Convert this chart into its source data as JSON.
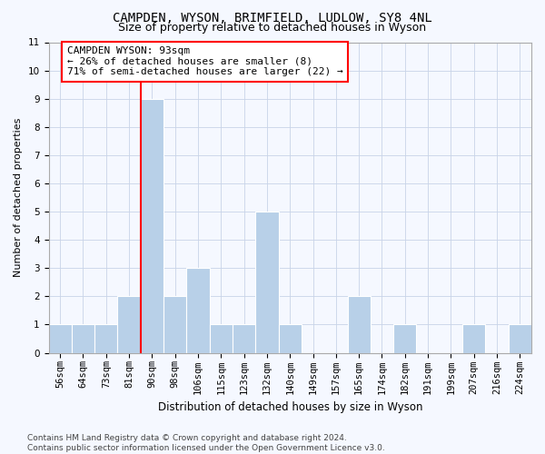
{
  "title1": "CAMPDEN, WYSON, BRIMFIELD, LUDLOW, SY8 4NL",
  "title2": "Size of property relative to detached houses in Wyson",
  "xlabel": "Distribution of detached houses by size in Wyson",
  "ylabel": "Number of detached properties",
  "categories": [
    "56sqm",
    "64sqm",
    "73sqm",
    "81sqm",
    "90sqm",
    "98sqm",
    "106sqm",
    "115sqm",
    "123sqm",
    "132sqm",
    "140sqm",
    "149sqm",
    "157sqm",
    "165sqm",
    "174sqm",
    "182sqm",
    "191sqm",
    "199sqm",
    "207sqm",
    "216sqm",
    "224sqm"
  ],
  "values": [
    1,
    1,
    1,
    2,
    9,
    2,
    3,
    1,
    1,
    5,
    1,
    0,
    0,
    2,
    0,
    1,
    0,
    0,
    1,
    0,
    1
  ],
  "bar_color": "#b8d0e8",
  "bar_edgecolor": "#b8d0e8",
  "redline_index": 4,
  "annotation_line1": "CAMPDEN WYSON: 93sqm",
  "annotation_line2": "← 26% of detached houses are smaller (8)",
  "annotation_line3": "71% of semi-detached houses are larger (22) →",
  "ylim": [
    0,
    11
  ],
  "yticks": [
    0,
    1,
    2,
    3,
    4,
    5,
    6,
    7,
    8,
    9,
    10,
    11
  ],
  "footer": "Contains HM Land Registry data © Crown copyright and database right 2024.\nContains public sector information licensed under the Open Government Licence v3.0.",
  "background_color": "#f5f8ff",
  "plot_bg_color": "#f5f8ff",
  "grid_color": "#c8d4e8",
  "title1_fontsize": 10,
  "title2_fontsize": 9,
  "xlabel_fontsize": 8.5,
  "ylabel_fontsize": 8,
  "tick_fontsize": 7.5,
  "annotation_fontsize": 8,
  "footer_fontsize": 6.5
}
